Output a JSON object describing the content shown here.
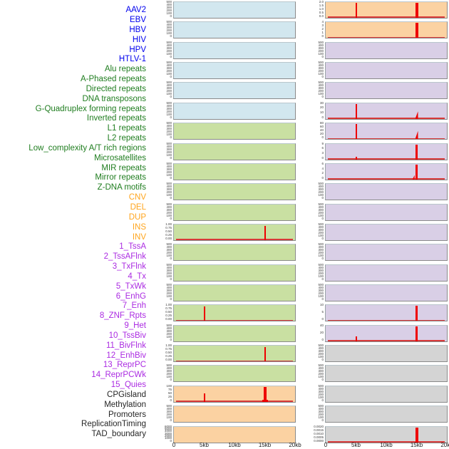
{
  "figure": {
    "xaxis": {
      "ticks": [
        "0",
        "5kb",
        "10kb",
        "15kb",
        "20kb"
      ]
    },
    "colors": {
      "label": {
        "virus": "#0000EE",
        "repeat": "#1f7d1f",
        "sv": "#FFA51E",
        "chromstate": "#AB2BE2",
        "other": "#262626"
      },
      "track_bg": {
        "virus": "#d2e7ef",
        "repeat": "#c9e0a2",
        "sv": "#fbd2a2",
        "chromstate": "#d9cfe6",
        "other": "#d4d4d4"
      },
      "signal": "#ee0000",
      "baseline": "#d93a3a"
    }
  },
  "chart_data": {
    "type": "bar",
    "description": "Multi-track genomic feature density figure: 44 feature tracks in two panels (left panel rows 1-22, right panel rows 23-44), each over a 0-20kb window. Red spikes mark enriched positions (mostly at 5kb and 15kb); tracks without peaks are flat.",
    "x_unit": "kb",
    "x_range": [
      0,
      20
    ],
    "x_ticks": [
      "0",
      "5kb",
      "10kb",
      "15kb",
      "20kb"
    ],
    "tracks": [
      {
        "label": "AAV2",
        "group": "virus",
        "panel": "left",
        "yticks": [
          "500",
          "400",
          "300",
          "200",
          "100",
          "0"
        ],
        "peaks": [],
        "baseline": false
      },
      {
        "label": "EBV",
        "group": "virus",
        "panel": "left",
        "yticks": [
          "500",
          "400",
          "300",
          "200",
          "100",
          "0"
        ],
        "peaks": [],
        "baseline": false
      },
      {
        "label": "HBV",
        "group": "virus",
        "panel": "left",
        "yticks": [
          "500",
          "400",
          "300",
          "200",
          "100",
          "0"
        ],
        "peaks": [],
        "baseline": false
      },
      {
        "label": "HIV",
        "group": "virus",
        "panel": "left",
        "yticks": [
          "500",
          "400",
          "300",
          "200",
          "100",
          "0"
        ],
        "peaks": [],
        "baseline": false
      },
      {
        "label": "HPV",
        "group": "virus",
        "panel": "left",
        "yticks": [
          "500",
          "400",
          "300",
          "200",
          "100",
          "0"
        ],
        "peaks": [],
        "baseline": false
      },
      {
        "label": "HTLV-1",
        "group": "virus",
        "panel": "left",
        "yticks": [
          "500",
          "400",
          "300",
          "200",
          "100",
          "0"
        ],
        "peaks": [],
        "baseline": false
      },
      {
        "label": "Alu repeats",
        "group": "repeat",
        "panel": "left",
        "yticks": [
          "500",
          "400",
          "300",
          "200",
          "100",
          "0"
        ],
        "peaks": [],
        "baseline": false
      },
      {
        "label": "A-Phased repeats",
        "group": "repeat",
        "panel": "left",
        "yticks": [
          "500",
          "400",
          "300",
          "200",
          "100",
          "0"
        ],
        "peaks": [],
        "baseline": false
      },
      {
        "label": "Directed repeats",
        "group": "repeat",
        "panel": "left",
        "yticks": [
          "500",
          "400",
          "300",
          "200",
          "100",
          "0"
        ],
        "peaks": [],
        "baseline": false
      },
      {
        "label": "DNA transposons",
        "group": "repeat",
        "panel": "left",
        "yticks": [
          "500",
          "400",
          "300",
          "200",
          "100",
          "0"
        ],
        "peaks": [],
        "baseline": false
      },
      {
        "label": "G-Quadruplex forming repeats",
        "group": "repeat",
        "panel": "left",
        "yticks": [
          "500",
          "400",
          "300",
          "200",
          "100",
          "0"
        ],
        "peaks": [],
        "baseline": false
      },
      {
        "label": "Inverted repeats",
        "group": "repeat",
        "panel": "left",
        "yticks": [
          "1.00",
          "0.75",
          "0.50",
          "0.25",
          "0.00"
        ],
        "peaks": [
          {
            "x_kb": 15,
            "value": 0.95,
            "frac": 0.95,
            "w": 2
          }
        ],
        "baseline": true
      },
      {
        "label": "L1 repeats",
        "group": "repeat",
        "panel": "left",
        "yticks": [
          "500",
          "400",
          "300",
          "200",
          "100",
          "0"
        ],
        "peaks": [],
        "baseline": false
      },
      {
        "label": "L2 repeats",
        "group": "repeat",
        "panel": "left",
        "yticks": [
          "500",
          "400",
          "300",
          "200",
          "100",
          "0"
        ],
        "peaks": [],
        "baseline": false
      },
      {
        "label": "Low_complexity A/T rich regions",
        "group": "repeat",
        "panel": "left",
        "yticks": [
          "500",
          "400",
          "300",
          "200",
          "100",
          "0"
        ],
        "peaks": [],
        "baseline": false
      },
      {
        "label": "Microsatellites",
        "group": "repeat",
        "panel": "left",
        "yticks": [
          "1.00",
          "0.75",
          "0.50",
          "0.25",
          "0.00"
        ],
        "peaks": [
          {
            "x_kb": 5,
            "value": 0.95,
            "frac": 0.95,
            "w": 2
          }
        ],
        "baseline": true
      },
      {
        "label": "MIR repeats",
        "group": "repeat",
        "panel": "left",
        "yticks": [
          "500",
          "400",
          "300",
          "200",
          "100",
          "0"
        ],
        "peaks": [],
        "baseline": false
      },
      {
        "label": "Mirror repeats",
        "group": "repeat",
        "panel": "left",
        "yticks": [
          "1.00",
          "0.75",
          "0.50",
          "0.25",
          "0.00"
        ],
        "peaks": [
          {
            "x_kb": 15,
            "value": 0.95,
            "frac": 0.95,
            "w": 2
          }
        ],
        "baseline": true
      },
      {
        "label": "Z-DNA motifs",
        "group": "repeat",
        "panel": "left",
        "yticks": [
          "500",
          "400",
          "300",
          "200",
          "100",
          "0"
        ],
        "peaks": [],
        "baseline": false
      },
      {
        "label": "CNV",
        "group": "sv",
        "panel": "left",
        "yticks": [
          "100",
          "75",
          "50",
          "25",
          "0"
        ],
        "peaks": [
          {
            "x_kb": 5,
            "value": 55,
            "frac": 0.55,
            "w": 2
          },
          {
            "x_kb": 15,
            "value": 100,
            "frac": 1.0,
            "w": 4
          },
          {
            "x_kb": 15,
            "value": 15,
            "frac": 0.15,
            "w": 8
          }
        ],
        "baseline": true
      },
      {
        "label": "DEL",
        "group": "sv",
        "panel": "left",
        "yticks": [
          "500",
          "400",
          "300",
          "200",
          "100",
          "0"
        ],
        "peaks": [],
        "baseline": false
      },
      {
        "label": "DUP",
        "group": "sv",
        "panel": "left",
        "yticks": [
          "6000",
          "5000",
          "4000",
          "3000",
          "2000",
          "1000",
          "0"
        ],
        "peaks": [],
        "baseline": false
      },
      {
        "label": "INS",
        "group": "sv",
        "panel": "right",
        "yticks": [
          "2.0",
          "1.5",
          "1.0",
          "0.5",
          "0.0"
        ],
        "peaks": [
          {
            "x_kb": 5,
            "value": 2.0,
            "frac": 1.0,
            "w": 2
          },
          {
            "x_kb": 15,
            "value": 2.0,
            "frac": 1.0,
            "w": 4
          }
        ],
        "baseline": true
      },
      {
        "label": "INV",
        "group": "sv",
        "panel": "right",
        "yticks": [
          "4",
          "3",
          "2",
          "1",
          "0"
        ],
        "peaks": [
          {
            "x_kb": 15,
            "value": 4,
            "frac": 1.0,
            "w": 4
          }
        ],
        "baseline": true
      },
      {
        "label": "1_TssA",
        "group": "chromstate",
        "panel": "right",
        "yticks": [
          "500",
          "400",
          "300",
          "200",
          "100",
          "0"
        ],
        "peaks": [],
        "baseline": false
      },
      {
        "label": "2_TssAFlnk",
        "group": "chromstate",
        "panel": "right",
        "yticks": [
          "500",
          "400",
          "300",
          "200",
          "100",
          "0"
        ],
        "peaks": [],
        "baseline": false
      },
      {
        "label": "3_TxFlnk",
        "group": "chromstate",
        "panel": "right",
        "yticks": [
          "500",
          "400",
          "300",
          "200",
          "100",
          "0"
        ],
        "peaks": [],
        "baseline": false
      },
      {
        "label": "4_Tx",
        "group": "chromstate",
        "panel": "right",
        "yticks": [
          "30",
          "20",
          "10",
          "0"
        ],
        "peaks": [
          {
            "x_kb": 5,
            "value": 32,
            "frac": 1.0,
            "w": 2
          },
          {
            "x_kb": 15,
            "value": 15,
            "frac": 0.5,
            "w": 4,
            "shape": "ramp"
          }
        ],
        "baseline": true
      },
      {
        "label": "5_TxWk",
        "group": "chromstate",
        "panel": "right",
        "yticks": [
          "80",
          "60",
          "40",
          "20",
          "0"
        ],
        "peaks": [
          {
            "x_kb": 5,
            "value": 85,
            "frac": 1.0,
            "w": 2
          },
          {
            "x_kb": 15,
            "value": 45,
            "frac": 0.55,
            "w": 4,
            "shape": "ramp"
          }
        ],
        "baseline": true
      },
      {
        "label": "6_EnhG",
        "group": "chromstate",
        "panel": "right",
        "yticks": [
          "9",
          "6",
          "3",
          "0"
        ],
        "peaks": [
          {
            "x_kb": 5,
            "value": 1.5,
            "frac": 0.18,
            "w": 2
          },
          {
            "x_kb": 15,
            "value": 9.5,
            "frac": 1.0,
            "w": 3
          }
        ],
        "baseline": true
      },
      {
        "label": "7_Enh",
        "group": "chromstate",
        "panel": "right",
        "yticks": [
          "6",
          "4",
          "2",
          "0"
        ],
        "peaks": [
          {
            "x_kb": 14.5,
            "value": 2,
            "frac": 0.3,
            "w": 3,
            "shape": "ramp"
          },
          {
            "x_kb": 15,
            "value": 6.5,
            "frac": 1.0,
            "w": 3
          }
        ],
        "baseline": true
      },
      {
        "label": "8_ZNF_Rpts",
        "group": "chromstate",
        "panel": "right",
        "yticks": [
          "500",
          "400",
          "300",
          "200",
          "100",
          "0"
        ],
        "peaks": [],
        "baseline": false
      },
      {
        "label": "9_Het",
        "group": "chromstate",
        "panel": "right",
        "yticks": [
          "500",
          "400",
          "300",
          "200",
          "100",
          "0"
        ],
        "peaks": [],
        "baseline": false
      },
      {
        "label": "10_TssBiv",
        "group": "chromstate",
        "panel": "right",
        "yticks": [
          "500",
          "400",
          "300",
          "200",
          "100",
          "0"
        ],
        "peaks": [],
        "baseline": false
      },
      {
        "label": "11_BivFlnk",
        "group": "chromstate",
        "panel": "right",
        "yticks": [
          "500",
          "400",
          "300",
          "200",
          "100",
          "0"
        ],
        "peaks": [],
        "baseline": false
      },
      {
        "label": "12_EnhBiv",
        "group": "chromstate",
        "panel": "right",
        "yticks": [
          "500",
          "400",
          "300",
          "200",
          "100",
          "0"
        ],
        "peaks": [],
        "baseline": false
      },
      {
        "label": "13_ReprPC",
        "group": "chromstate",
        "panel": "right",
        "yticks": [
          "500",
          "400",
          "300",
          "200",
          "100",
          "0"
        ],
        "peaks": [],
        "baseline": false
      },
      {
        "label": "14_ReprPCWk",
        "group": "chromstate",
        "panel": "right",
        "yticks": [
          "10",
          "5",
          "0"
        ],
        "peaks": [
          {
            "x_kb": 15,
            "value": 10.5,
            "frac": 1.0,
            "w": 3
          }
        ],
        "baseline": true
      },
      {
        "label": "15_Quies",
        "group": "chromstate",
        "panel": "right",
        "yticks": [
          "40",
          "20",
          "0"
        ],
        "peaks": [
          {
            "x_kb": 5,
            "value": 12,
            "frac": 0.3,
            "w": 2
          },
          {
            "x_kb": 15,
            "value": 42,
            "frac": 1.0,
            "w": 3
          }
        ],
        "baseline": true
      },
      {
        "label": "CPGisland",
        "group": "other",
        "panel": "right",
        "yticks": [
          "500",
          "400",
          "300",
          "200",
          "100",
          "0"
        ],
        "peaks": [],
        "baseline": false
      },
      {
        "label": "Methylation",
        "group": "other",
        "panel": "right",
        "yticks": [
          "500",
          "400",
          "300",
          "200",
          "100",
          "0"
        ],
        "peaks": [],
        "baseline": false
      },
      {
        "label": "Promoters",
        "group": "other",
        "panel": "right",
        "yticks": [
          "500",
          "400",
          "300",
          "200",
          "100",
          "0"
        ],
        "peaks": [],
        "baseline": false
      },
      {
        "label": "ReplicationTiming",
        "group": "other",
        "panel": "right",
        "yticks": [
          "500",
          "400",
          "300",
          "200",
          "100",
          "0"
        ],
        "peaks": [],
        "baseline": false
      },
      {
        "label": "TAD_boundary",
        "group": "other",
        "panel": "right",
        "yticks": [
          "0.0020",
          "0.0015",
          "0.0010",
          "0.0005",
          "0.0000"
        ],
        "peaks": [
          {
            "x_kb": 15,
            "value": 0.002,
            "frac": 1.0,
            "w": 4
          }
        ],
        "baseline": true
      }
    ]
  }
}
